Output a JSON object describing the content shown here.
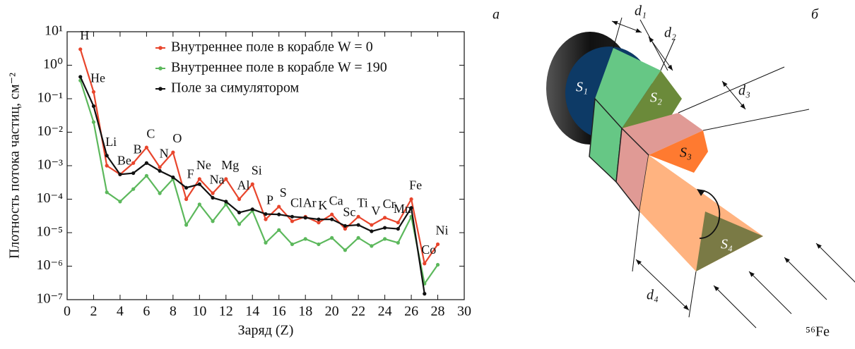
{
  "chart_data": {
    "type": "line",
    "panel_label": "а",
    "x_label": "Заряд (Z)",
    "y_label": "Плотность потока частиц, см⁻²",
    "x": [
      1,
      2,
      3,
      4,
      5,
      6,
      7,
      8,
      9,
      10,
      11,
      12,
      13,
      14,
      15,
      16,
      17,
      18,
      19,
      20,
      21,
      22,
      23,
      24,
      25,
      26,
      27,
      28
    ],
    "point_labels": [
      "H",
      "He",
      "Li",
      "Be",
      "B",
      "C",
      "N",
      "O",
      "F",
      "Ne",
      "Na",
      "Mg",
      "Al",
      "Si",
      "P",
      "S",
      "Cl",
      "Ar",
      "K",
      "Ca",
      "Sc",
      "Ti",
      "V",
      "Cr",
      "Mn",
      "Fe",
      "Co",
      "Ni"
    ],
    "series": [
      {
        "name": "Внутреннее поле в корабле W = 0",
        "color": "#e8452c",
        "values": [
          3,
          0.16,
          0.001,
          0.00055,
          0.0012,
          0.0035,
          0.0009,
          0.0025,
          0.0001,
          0.0004,
          0.00015,
          0.0004,
          0.0001,
          0.00028,
          2.5e-05,
          6e-05,
          2.2e-05,
          3e-05,
          2e-05,
          3.5e-05,
          1.3e-05,
          3e-05,
          1.7e-05,
          2.8e-05,
          2e-05,
          0.0001,
          1.2e-06,
          4.5e-06
        ]
      },
      {
        "name": "Внутреннее поле в корабле W = 190",
        "color": "#5cb85c",
        "values": [
          0.35,
          0.02,
          0.00016,
          8.5e-05,
          0.0002,
          0.0005,
          0.00015,
          0.0004,
          1.7e-05,
          7e-05,
          2.2e-05,
          7e-05,
          1.8e-05,
          4.5e-05,
          5e-06,
          1.2e-05,
          4.5e-06,
          6.5e-06,
          4.5e-06,
          7e-06,
          3e-06,
          7e-06,
          4e-06,
          6.5e-06,
          5e-06,
          3e-05,
          3e-07,
          1.1e-06
        ]
      },
      {
        "name": "Поле за симулятором",
        "color": "#111111",
        "values": [
          0.45,
          0.06,
          0.002,
          0.00055,
          0.0006,
          0.0012,
          0.0007,
          0.00045,
          0.00022,
          0.00028,
          0.00011,
          8.5e-05,
          4e-05,
          5e-05,
          3.6e-05,
          3.5e-05,
          3e-05,
          2.8e-05,
          2.5e-05,
          2.5e-05,
          1.6e-05,
          1.7e-05,
          1.1e-05,
          1.4e-05,
          1.3e-05,
          5.5e-05,
          1.5e-07,
          null
        ]
      }
    ],
    "xlim": [
      0,
      30
    ],
    "xticks": [
      0,
      2,
      4,
      6,
      8,
      10,
      12,
      14,
      16,
      18,
      20,
      22,
      24,
      26,
      28,
      30
    ],
    "ylim": [
      1e-07,
      10
    ],
    "y_log": true,
    "yticks": [
      {
        "value": 10,
        "label": "10¹"
      },
      {
        "value": 1,
        "label": "10⁰"
      },
      {
        "value": 0.1,
        "label": "10⁻¹"
      },
      {
        "value": 0.01,
        "label": "10⁻²"
      },
      {
        "value": 0.001,
        "label": "10⁻³"
      },
      {
        "value": 0.0001,
        "label": "10⁻⁴"
      },
      {
        "value": 1e-05,
        "label": "10⁻⁵"
      },
      {
        "value": 1e-06,
        "label": "10⁻⁶"
      },
      {
        "value": 1e-07,
        "label": "10⁻⁷"
      }
    ],
    "legend": "upper-right",
    "grid": false
  },
  "diagram": {
    "panel_label": "б",
    "d1": "d₁",
    "d2": "d₂",
    "d3": "d₃",
    "d4": "d₄",
    "s1": "S₁",
    "s2": "S₂",
    "s3": "S₃",
    "s4": "S₄",
    "beam": "⁵⁶Fe"
  }
}
